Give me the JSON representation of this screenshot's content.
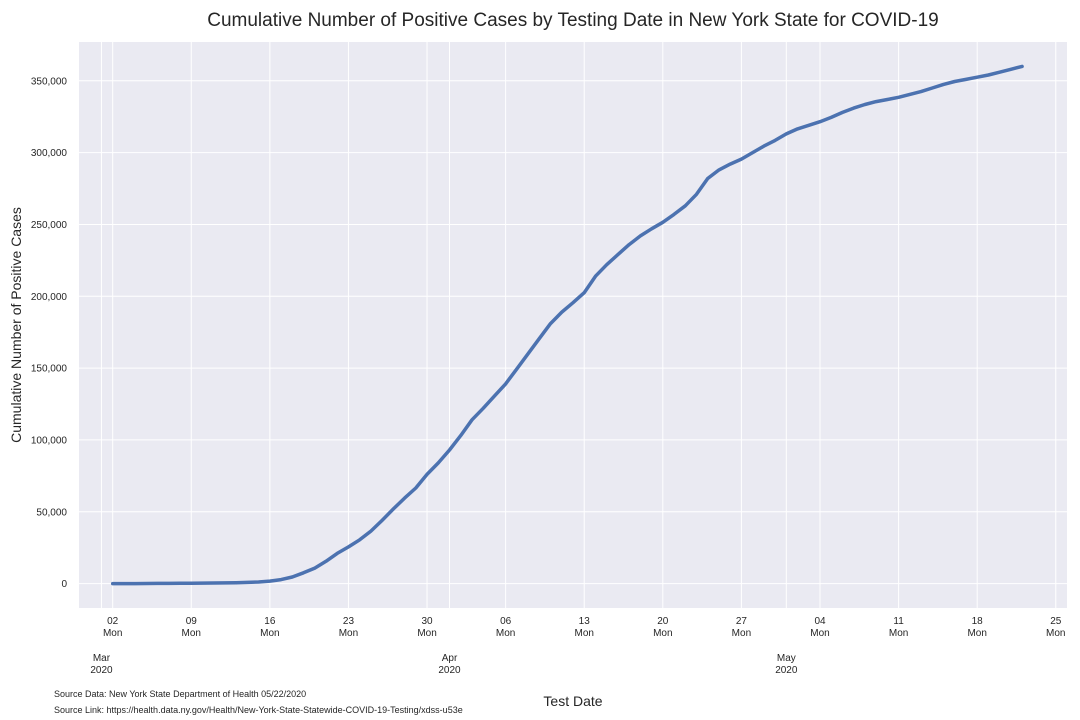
{
  "chart_data": {
    "type": "line",
    "title": "Cumulative Number of Positive Cases by Testing Date in New York State for COVID-19",
    "xlabel": "Test Date",
    "ylabel": "Cumulative Number of Positive Cases",
    "xlim": [
      "2020-02-28",
      "2020-05-26"
    ],
    "ylim": [
      -17000,
      377000
    ],
    "grid": true,
    "y_ticks": [
      {
        "value": 0,
        "label": "0"
      },
      {
        "value": 50000,
        "label": "50,000"
      },
      {
        "value": 100000,
        "label": "100,000"
      },
      {
        "value": 150000,
        "label": "150,000"
      },
      {
        "value": 200000,
        "label": "200,000"
      },
      {
        "value": 250000,
        "label": "250,000"
      },
      {
        "value": 300000,
        "label": "300,000"
      },
      {
        "value": 350000,
        "label": "350,000"
      }
    ],
    "x_major_ticks": [
      {
        "date": "2020-03-02",
        "day": "02",
        "weekday": "Mon"
      },
      {
        "date": "2020-03-09",
        "day": "09",
        "weekday": "Mon"
      },
      {
        "date": "2020-03-16",
        "day": "16",
        "weekday": "Mon"
      },
      {
        "date": "2020-03-23",
        "day": "23",
        "weekday": "Mon"
      },
      {
        "date": "2020-03-30",
        "day": "30",
        "weekday": "Mon"
      },
      {
        "date": "2020-04-06",
        "day": "06",
        "weekday": "Mon"
      },
      {
        "date": "2020-04-13",
        "day": "13",
        "weekday": "Mon"
      },
      {
        "date": "2020-04-20",
        "day": "20",
        "weekday": "Mon"
      },
      {
        "date": "2020-04-27",
        "day": "27",
        "weekday": "Mon"
      },
      {
        "date": "2020-05-04",
        "day": "04",
        "weekday": "Mon"
      },
      {
        "date": "2020-05-11",
        "day": "11",
        "weekday": "Mon"
      },
      {
        "date": "2020-05-18",
        "day": "18",
        "weekday": "Mon"
      },
      {
        "date": "2020-05-25",
        "day": "25",
        "weekday": "Mon"
      }
    ],
    "x_month_ticks": [
      {
        "date": "2020-03-01",
        "month": "Mar",
        "year": "2020"
      },
      {
        "date": "2020-04-01",
        "month": "Apr",
        "year": "2020"
      },
      {
        "date": "2020-05-01",
        "month": "May",
        "year": "2020"
      }
    ],
    "series": [
      {
        "color": "#4c72b0",
        "points": [
          [
            "2020-03-02",
            0
          ],
          [
            "2020-03-03",
            0
          ],
          [
            "2020-03-04",
            0
          ],
          [
            "2020-03-05",
            50
          ],
          [
            "2020-03-06",
            100
          ],
          [
            "2020-03-07",
            150
          ],
          [
            "2020-03-08",
            200
          ],
          [
            "2020-03-09",
            250
          ],
          [
            "2020-03-10",
            300
          ],
          [
            "2020-03-11",
            400
          ],
          [
            "2020-03-12",
            500
          ],
          [
            "2020-03-13",
            600
          ],
          [
            "2020-03-14",
            800
          ],
          [
            "2020-03-15",
            1100
          ],
          [
            "2020-03-16",
            1700
          ],
          [
            "2020-03-17",
            2800
          ],
          [
            "2020-03-18",
            4600
          ],
          [
            "2020-03-19",
            7500
          ],
          [
            "2020-03-20",
            10800
          ],
          [
            "2020-03-21",
            15500
          ],
          [
            "2020-03-22",
            21000
          ],
          [
            "2020-03-23",
            25500
          ],
          [
            "2020-03-24",
            30500
          ],
          [
            "2020-03-25",
            36500
          ],
          [
            "2020-03-26",
            44000
          ],
          [
            "2020-03-27",
            52000
          ],
          [
            "2020-03-28",
            59500
          ],
          [
            "2020-03-29",
            66500
          ],
          [
            "2020-03-30",
            76000
          ],
          [
            "2020-03-31",
            84000
          ],
          [
            "2020-04-01",
            93000
          ],
          [
            "2020-04-02",
            103000
          ],
          [
            "2020-04-03",
            114000
          ],
          [
            "2020-04-04",
            122000
          ],
          [
            "2020-04-05",
            130500
          ],
          [
            "2020-04-06",
            139000
          ],
          [
            "2020-04-07",
            149500
          ],
          [
            "2020-04-08",
            160000
          ],
          [
            "2020-04-09",
            170500
          ],
          [
            "2020-04-10",
            181000
          ],
          [
            "2020-04-11",
            189000
          ],
          [
            "2020-04-12",
            195500
          ],
          [
            "2020-04-13",
            202500
          ],
          [
            "2020-04-14",
            214000
          ],
          [
            "2020-04-15",
            222000
          ],
          [
            "2020-04-16",
            229000
          ],
          [
            "2020-04-17",
            236000
          ],
          [
            "2020-04-18",
            242000
          ],
          [
            "2020-04-19",
            247000
          ],
          [
            "2020-04-20",
            251500
          ],
          [
            "2020-04-21",
            257000
          ],
          [
            "2020-04-22",
            263000
          ],
          [
            "2020-04-23",
            271000
          ],
          [
            "2020-04-24",
            282000
          ],
          [
            "2020-04-25",
            288000
          ],
          [
            "2020-04-26",
            292000
          ],
          [
            "2020-04-27",
            295500
          ],
          [
            "2020-04-28",
            300000
          ],
          [
            "2020-04-29",
            304500
          ],
          [
            "2020-04-30",
            308500
          ],
          [
            "2020-05-01",
            313000
          ],
          [
            "2020-05-02",
            316500
          ],
          [
            "2020-05-03",
            319000
          ],
          [
            "2020-05-04",
            321500
          ],
          [
            "2020-05-05",
            324500
          ],
          [
            "2020-05-06",
            328000
          ],
          [
            "2020-05-07",
            331000
          ],
          [
            "2020-05-08",
            333500
          ],
          [
            "2020-05-09",
            335500
          ],
          [
            "2020-05-10",
            337000
          ],
          [
            "2020-05-11",
            338500
          ],
          [
            "2020-05-12",
            340500
          ],
          [
            "2020-05-13",
            342500
          ],
          [
            "2020-05-14",
            345000
          ],
          [
            "2020-05-15",
            347500
          ],
          [
            "2020-05-16",
            349500
          ],
          [
            "2020-05-17",
            351000
          ],
          [
            "2020-05-18",
            352500
          ],
          [
            "2020-05-19",
            354000
          ],
          [
            "2020-05-20",
            356000
          ],
          [
            "2020-05-21",
            358000
          ],
          [
            "2020-05-22",
            360000
          ]
        ]
      }
    ]
  },
  "footer": {
    "source_data": "Source Data: New York State Department of Health 05/22/2020",
    "source_link": "Source Link: https://health.data.ny.gov/Health/New-York-State-Statewide-COVID-19-Testing/xdss-u53e"
  }
}
